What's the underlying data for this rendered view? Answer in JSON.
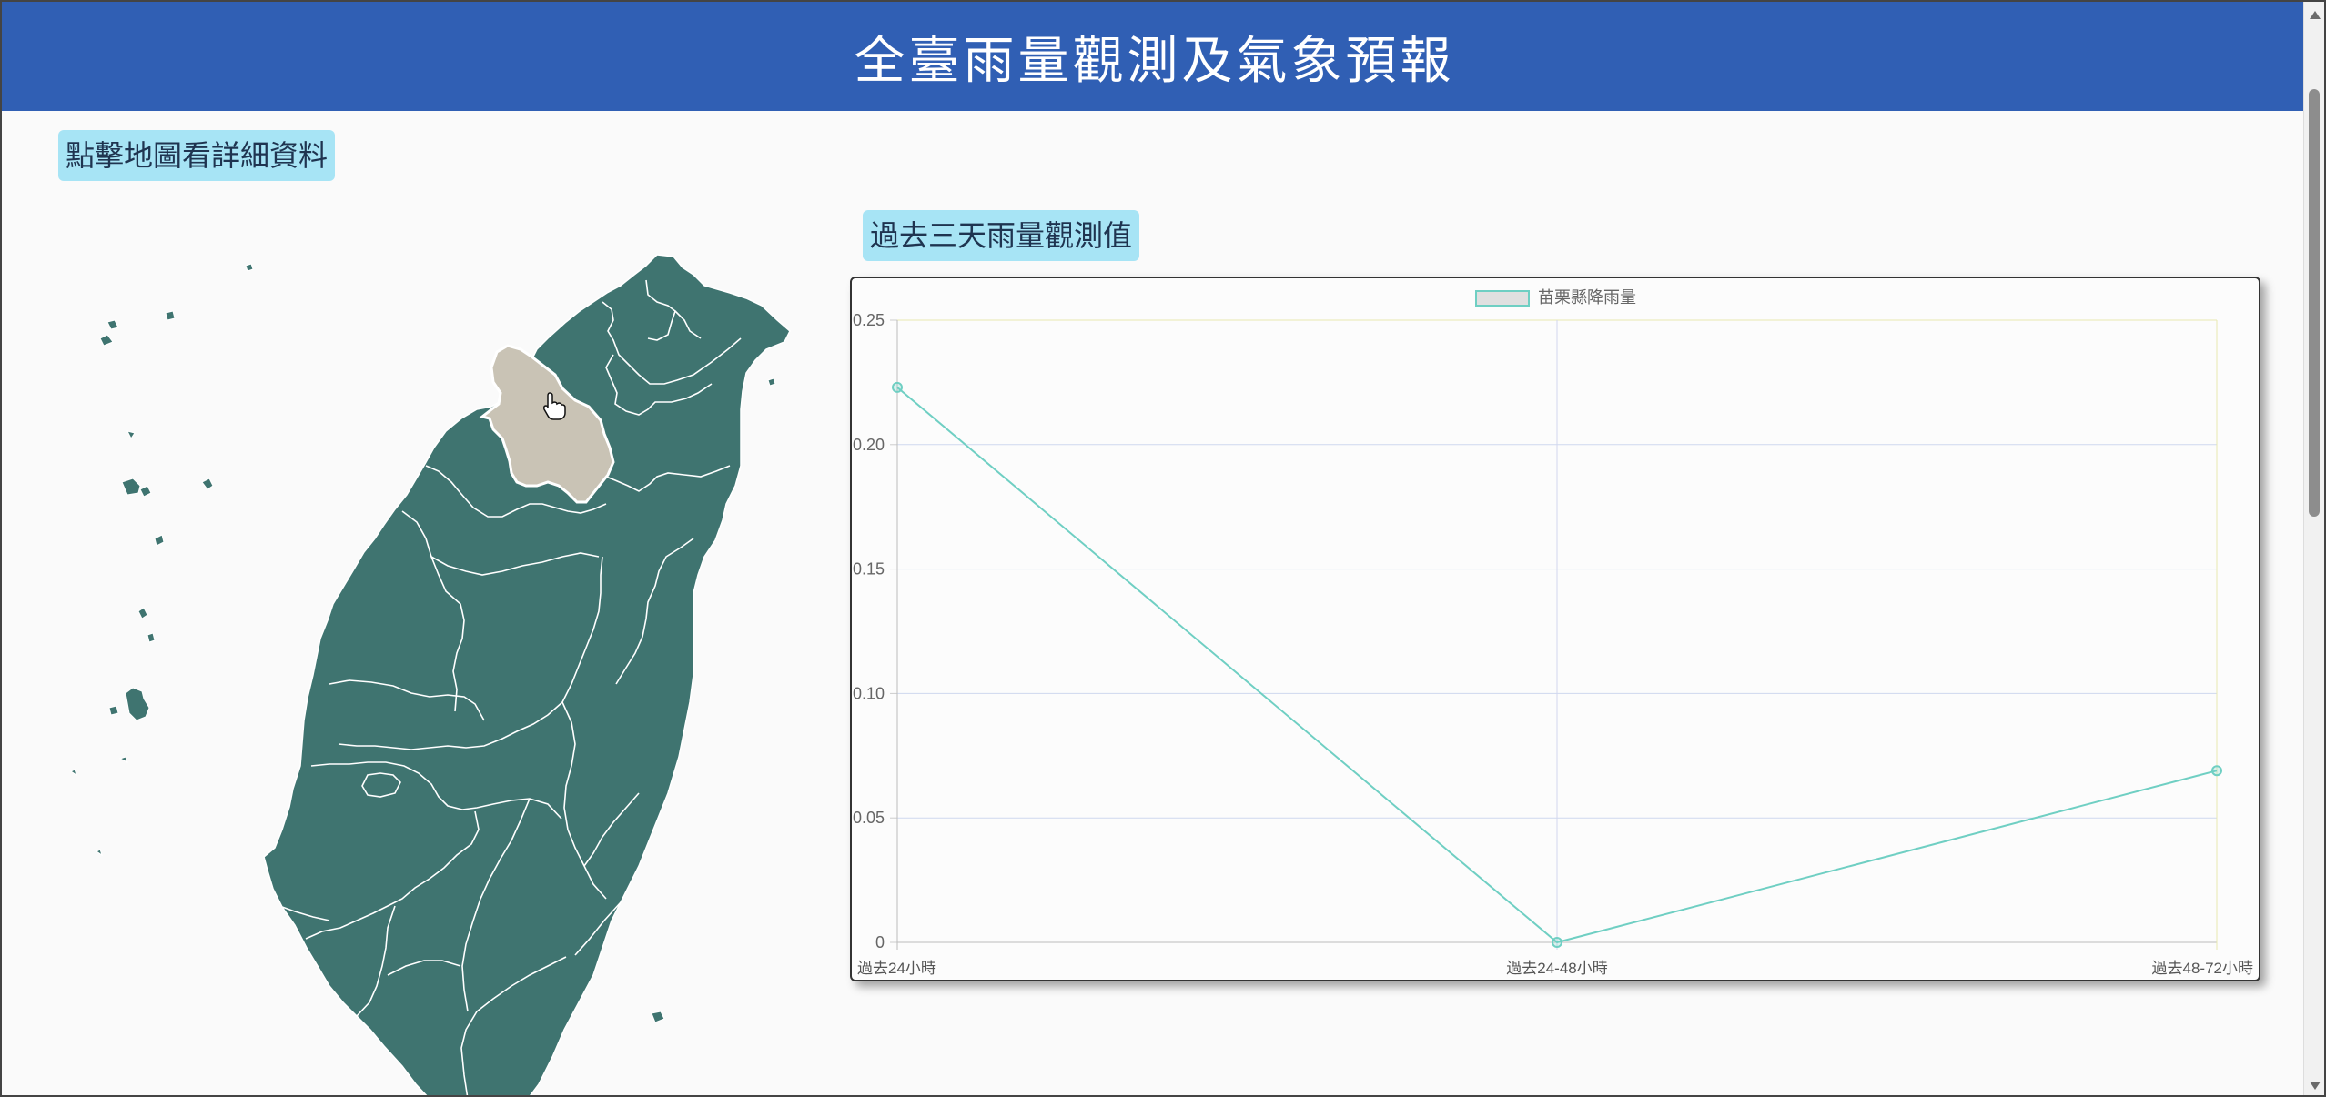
{
  "header": {
    "title": "全臺雨量觀測及氣象預報"
  },
  "map_hint": {
    "label": "點擊地圖看詳細資料"
  },
  "chart_section": {
    "label": "過去三天雨量觀測值"
  },
  "map": {
    "fill_color": "#3f7470",
    "hover_color": "#c9c3b5",
    "border_color": "#ffffff",
    "highlighted_county": "苗栗縣"
  },
  "chart_data": {
    "type": "line",
    "categories": [
      "過去24小時",
      "過去24-48小時",
      "過去48-72小時"
    ],
    "series": [
      {
        "name": "苗栗縣降雨量",
        "values": [
          0.223,
          0.0,
          0.069
        ],
        "color": "#6fcfc3"
      }
    ],
    "yticks": [
      "0",
      "0.05",
      "0.10",
      "0.15",
      "0.20",
      "0.25"
    ],
    "ylim": [
      0,
      0.25
    ],
    "grid": true,
    "legend": "top-center"
  },
  "scrollbar": {
    "icons": [
      "arrow-up-icon",
      "arrow-down-icon"
    ]
  }
}
